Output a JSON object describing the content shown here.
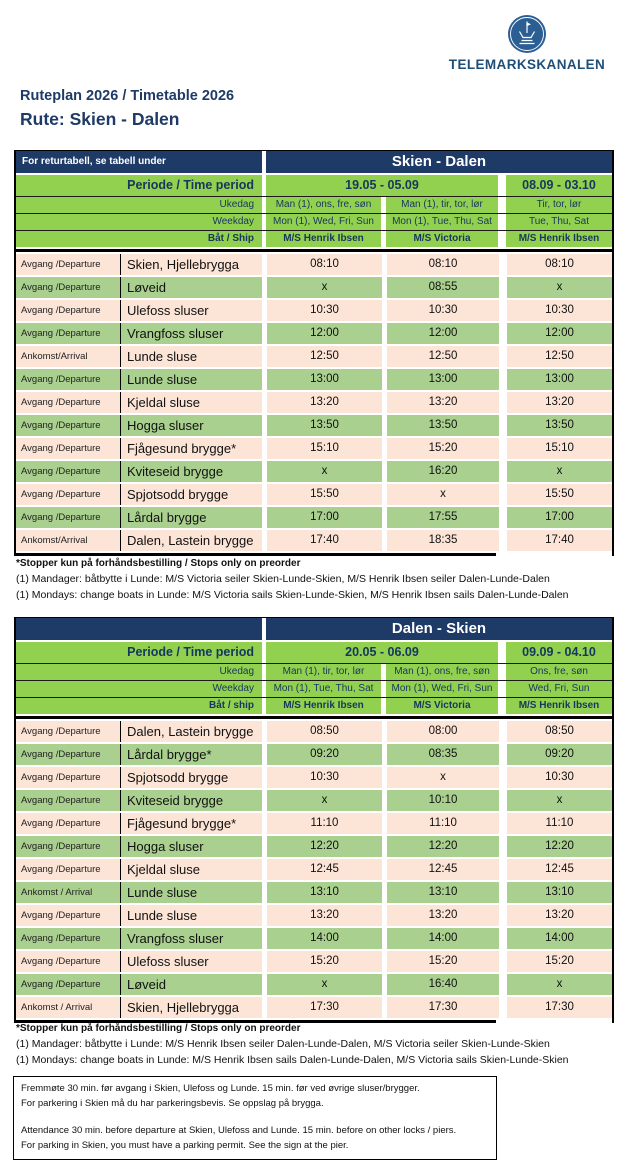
{
  "logo": {
    "brand": "TELEMARKSKANALEN",
    "icon": "canal-lock-boat-icon",
    "circle_color": "#2b5f94",
    "text_color": "#1f4e79"
  },
  "page": {
    "title_line1": "Ruteplan 2026 / Timetable 2026",
    "title_line2": "Rute: Skien - Dalen"
  },
  "colors": {
    "navy": "#1e3a66",
    "header_green": "#92d050",
    "row_green": "#a9d08e",
    "row_peach": "#fce4d6"
  },
  "tables": [
    {
      "corner_note": "For returtabell, se tabell under",
      "title": "Skien - Dalen",
      "period_label": "Periode / Time period",
      "period_main": "19.05 - 05.09",
      "period_right": "08.09 - 03.10",
      "ukedag_label": "Ukedag",
      "ukedag": [
        "Man (1), ons, fre, søn",
        "Man (1), tir, tor, lør",
        "Tir, tor, lør"
      ],
      "weekday_label": "Weekday",
      "weekday": [
        "Mon (1), Wed, Fri, Sun",
        "Mon (1), Tue, Thu, Sat",
        "Tue, Thu, Sat"
      ],
      "ship_label": "Båt / Ship",
      "ships": [
        "M/S Henrik Ibsen",
        "M/S Victoria",
        "M/S Henrik Ibsen"
      ],
      "rows": [
        {
          "type": "Avgang /Departure",
          "stop": "Skien, Hjellebrygga",
          "times": [
            "08:10",
            "08:10",
            "08:10"
          ]
        },
        {
          "type": "Avgang /Departure",
          "stop": "Løveid",
          "times": [
            "x",
            "08:55",
            "x"
          ]
        },
        {
          "type": "Avgang /Departure",
          "stop": "Ulefoss sluser",
          "times": [
            "10:30",
            "10:30",
            "10:30"
          ]
        },
        {
          "type": "Avgang /Departure",
          "stop": "Vrangfoss sluser",
          "times": [
            "12:00",
            "12:00",
            "12:00"
          ]
        },
        {
          "type": "Ankomst/Arrival",
          "stop": "Lunde sluse",
          "times": [
            "12:50",
            "12:50",
            "12:50"
          ]
        },
        {
          "type": "Avgang /Departure",
          "stop": "Lunde sluse",
          "times": [
            "13:00",
            "13:00",
            "13:00"
          ]
        },
        {
          "type": "Avgang /Departure",
          "stop": "Kjeldal sluse",
          "times": [
            "13:20",
            "13:20",
            "13:20"
          ]
        },
        {
          "type": "Avgang /Departure",
          "stop": "Hogga sluser",
          "times": [
            "13:50",
            "13:50",
            "13:50"
          ]
        },
        {
          "type": "Avgang /Departure",
          "stop": "Fjågesund brygge*",
          "times": [
            "15:10",
            "15:20",
            "15:10"
          ]
        },
        {
          "type": "Avgang /Departure",
          "stop": "Kviteseid brygge",
          "times": [
            "x",
            "16:20",
            "x"
          ]
        },
        {
          "type": "Avgang /Departure",
          "stop": "Spjotsodd brygge",
          "times": [
            "15:50",
            "x",
            "15:50"
          ]
        },
        {
          "type": "Avgang /Departure",
          "stop": "Lårdal brygge",
          "times": [
            "17:00",
            "17:55",
            "17:00"
          ]
        },
        {
          "type": "Ankomst/Arrival",
          "stop": "Dalen, Lastein brygge",
          "times": [
            "17:40",
            "18:35",
            "17:40"
          ]
        }
      ],
      "footnotes": [
        "*Stopper kun på forhåndsbestilling / Stops only on preorder",
        "(1) Mandager: båtbytte i Lunde: M/S Victoria seiler Skien-Lunde-Skien, M/S Henrik Ibsen seiler Dalen-Lunde-Dalen",
        "(1) Mondays: change boats in Lunde: M/S Victoria sails Skien-Lunde-Skien, M/S Henrik Ibsen sails Dalen-Lunde-Dalen"
      ]
    },
    {
      "corner_note": "",
      "title": "Dalen - Skien",
      "period_label": "Periode / Time period",
      "period_main": "20.05 - 06.09",
      "period_right": "09.09 - 04.10",
      "ukedag_label": "Ukedag",
      "ukedag": [
        "Man (1), tir, tor, lør",
        "Man (1), ons, fre, søn",
        "Ons, fre, søn"
      ],
      "weekday_label": "Weekday",
      "weekday": [
        "Mon (1), Tue, Thu, Sat",
        "Mon (1), Wed, Fri, Sun",
        "Wed, Fri, Sun"
      ],
      "ship_label": "Båt / ship",
      "ships": [
        "M/S Henrik Ibsen",
        "M/S Victoria",
        "M/S Henrik Ibsen"
      ],
      "rows": [
        {
          "type": "Avgang /Departure",
          "stop": "Dalen, Lastein brygge",
          "times": [
            "08:50",
            "08:00",
            "08:50"
          ]
        },
        {
          "type": "Avgang /Departure",
          "stop": "Lårdal brygge*",
          "times": [
            "09:20",
            "08:35",
            "09:20"
          ]
        },
        {
          "type": "Avgang /Departure",
          "stop": "Spjotsodd brygge",
          "times": [
            "10:30",
            "x",
            "10:30"
          ]
        },
        {
          "type": "Avgang /Departure",
          "stop": "Kviteseid brygge",
          "times": [
            "x",
            "10:10",
            "x"
          ]
        },
        {
          "type": "Avgang /Departure",
          "stop": "Fjågesund brygge*",
          "times": [
            "11:10",
            "11:10",
            "11:10"
          ]
        },
        {
          "type": "Avgang /Departure",
          "stop": "Hogga sluser",
          "times": [
            "12:20",
            "12:20",
            "12:20"
          ]
        },
        {
          "type": "Avgang /Departure",
          "stop": "Kjeldal sluse",
          "times": [
            "12:45",
            "12:45",
            "12:45"
          ]
        },
        {
          "type": "Ankomst / Arrival",
          "stop": "Lunde sluse",
          "times": [
            "13:10",
            "13:10",
            "13:10"
          ]
        },
        {
          "type": "Avgang /Departure",
          "stop": "Lunde sluse",
          "times": [
            "13:20",
            "13:20",
            "13:20"
          ]
        },
        {
          "type": "Avgang /Departure",
          "stop": "Vrangfoss sluser",
          "times": [
            "14:00",
            "14:00",
            "14:00"
          ]
        },
        {
          "type": "Avgang /Departure",
          "stop": "Ulefoss sluser",
          "times": [
            "15:20",
            "15:20",
            "15:20"
          ]
        },
        {
          "type": "Avgang /Departure",
          "stop": "Løveid",
          "times": [
            "x",
            "16:40",
            "x"
          ]
        },
        {
          "type": "Ankomst / Arrival",
          "stop": "Skien, Hjellebrygga",
          "times": [
            "17:30",
            "17:30",
            "17:30"
          ]
        }
      ],
      "footnotes": [
        "*Stopper kun på forhåndsbestilling / Stops only on preorder",
        "(1) Mandager: båtbytte i Lunde: M/S Henrik Ibsen seiler Dalen-Lunde-Dalen, M/S Victoria seiler Skien-Lunde-Skien",
        "(1) Mondays: change boats in Lunde: M/S Henrik Ibsen sails Dalen-Lunde-Dalen, M/S Victoria sails Skien-Lunde-Skien"
      ]
    }
  ],
  "notice": {
    "no": [
      "Fremmøte 30 min. før avgang i Skien, Ulefoss og Lunde. 15 min. før ved øvrige sluser/brygger.",
      "For parkering i Skien må du har parkeringsbevis. Se oppslag på brygga."
    ],
    "en": [
      "Attendance 30 min. before departure at Skien, Ulefoss and Lunde. 15 min. before on other locks / piers.",
      "For parking in Skien, you must have a parking permit. See the sign at the pier."
    ]
  }
}
